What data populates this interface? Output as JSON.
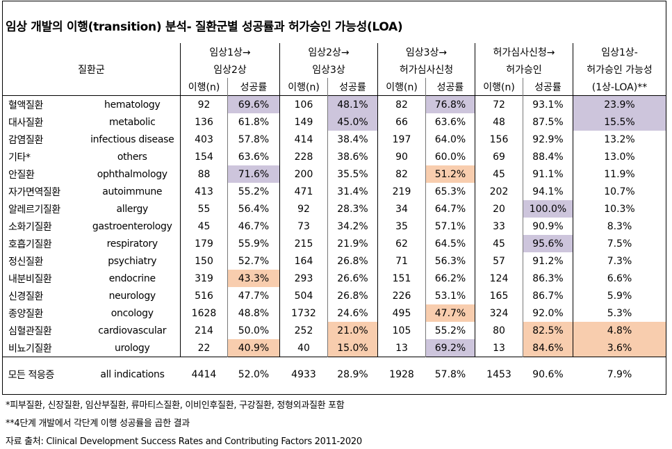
{
  "title": "임상 개발의 이행(transition) 분석- 질환군별 성공률과 허가승인 가능성(LOA)",
  "colors": {
    "highlight_high": "#cdc5dc",
    "highlight_low": "#f8cdae"
  },
  "header": {
    "group_label": "질환군",
    "phases": [
      {
        "line1": "임상1상→",
        "line2": "임상2상"
      },
      {
        "line1": "임상2상→",
        "line2": "임상3상"
      },
      {
        "line1": "임상3상→",
        "line2": "허가심사신청"
      },
      {
        "line1": "허가심사신청→",
        "line2": "허가승인"
      }
    ],
    "n_label": "이행(n)",
    "rate_label": "성공률",
    "loa_line1": "임상1상-",
    "loa_line2": "허가승인 가능성",
    "loa_line3": "(1상-LOA)**"
  },
  "rows": [
    {
      "ko": "혈액질환",
      "en": "hematology",
      "p1n": "92",
      "p1r": "69.6%",
      "p2n": "106",
      "p2r": "48.1%",
      "p3n": "82",
      "p3r": "76.8%",
      "p4n": "72",
      "p4r": "93.1%",
      "loa": "23.9%",
      "hl": {
        "p1r": "p",
        "p2r": "p",
        "p3r": "p",
        "loa": "p"
      }
    },
    {
      "ko": "대사질환",
      "en": "metabolic",
      "p1n": "136",
      "p1r": "61.8%",
      "p2n": "149",
      "p2r": "45.0%",
      "p3n": "66",
      "p3r": "63.6%",
      "p4n": "48",
      "p4r": "87.5%",
      "loa": "15.5%",
      "hl": {
        "p2r": "p",
        "loa": "p"
      }
    },
    {
      "ko": "감염질환",
      "en": "infectious disease",
      "p1n": "403",
      "p1r": "57.8%",
      "p2n": "414",
      "p2r": "38.4%",
      "p3n": "197",
      "p3r": "64.0%",
      "p4n": "156",
      "p4r": "92.9%",
      "loa": "13.2%",
      "hl": {}
    },
    {
      "ko": "기타*",
      "en": "others",
      "p1n": "154",
      "p1r": "63.6%",
      "p2n": "228",
      "p2r": "38.6%",
      "p3n": "90",
      "p3r": "60.0%",
      "p4n": "69",
      "p4r": "88.4%",
      "loa": "13.0%",
      "hl": {}
    },
    {
      "ko": "안질환",
      "en": "ophthalmology",
      "p1n": "88",
      "p1r": "71.6%",
      "p2n": "200",
      "p2r": "35.5%",
      "p3n": "82",
      "p3r": "51.2%",
      "p4n": "45",
      "p4r": "91.1%",
      "loa": "11.9%",
      "hl": {
        "p1r": "p",
        "p3r": "o"
      }
    },
    {
      "ko": "자가면역질환",
      "en": "autoimmune",
      "p1n": "413",
      "p1r": "55.2%",
      "p2n": "471",
      "p2r": "31.4%",
      "p3n": "219",
      "p3r": "65.3%",
      "p4n": "202",
      "p4r": "94.1%",
      "loa": "10.7%",
      "hl": {}
    },
    {
      "ko": "알레르기질환",
      "en": "allergy",
      "p1n": "55",
      "p1r": "56.4%",
      "p2n": "92",
      "p2r": "28.3%",
      "p3n": "34",
      "p3r": "64.7%",
      "p4n": "20",
      "p4r": "100.0%",
      "loa": "10.3%",
      "hl": {
        "p4r": "p"
      }
    },
    {
      "ko": "소화기질환",
      "en": "gastroenterology",
      "p1n": "45",
      "p1r": "46.7%",
      "p2n": "73",
      "p2r": "34.2%",
      "p3n": "35",
      "p3r": "57.1%",
      "p4n": "33",
      "p4r": "90.9%",
      "loa": "8.3%",
      "hl": {}
    },
    {
      "ko": "호흡기질환",
      "en": "respiratory",
      "p1n": "179",
      "p1r": "55.9%",
      "p2n": "215",
      "p2r": "21.9%",
      "p3n": "62",
      "p3r": "64.5%",
      "p4n": "45",
      "p4r": "95.6%",
      "loa": "7.5%",
      "hl": {
        "p4r": "p"
      }
    },
    {
      "ko": "정신질환",
      "en": "psychiatry",
      "p1n": "150",
      "p1r": "52.7%",
      "p2n": "164",
      "p2r": "26.8%",
      "p3n": "71",
      "p3r": "56.3%",
      "p4n": "57",
      "p4r": "91.2%",
      "loa": "7.3%",
      "hl": {}
    },
    {
      "ko": "내분비질환",
      "en": "endocrine",
      "p1n": "319",
      "p1r": "43.3%",
      "p2n": "293",
      "p2r": "26.6%",
      "p3n": "151",
      "p3r": "66.2%",
      "p4n": "124",
      "p4r": "86.3%",
      "loa": "6.6%",
      "hl": {
        "p1r": "o"
      }
    },
    {
      "ko": "신경질환",
      "en": "neurology",
      "p1n": "516",
      "p1r": "47.7%",
      "p2n": "504",
      "p2r": "26.8%",
      "p3n": "226",
      "p3r": "53.1%",
      "p4n": "165",
      "p4r": "86.7%",
      "loa": "5.9%",
      "hl": {}
    },
    {
      "ko": "종양질환",
      "en": "oncology",
      "p1n": "1628",
      "p1r": "48.8%",
      "p2n": "1732",
      "p2r": "24.6%",
      "p3n": "495",
      "p3r": "47.7%",
      "p4n": "324",
      "p4r": "92.0%",
      "loa": "5.3%",
      "hl": {
        "p3r": "o"
      }
    },
    {
      "ko": "심혈관질환",
      "en": "cardiovascular",
      "p1n": "214",
      "p1r": "50.0%",
      "p2n": "252",
      "p2r": "21.0%",
      "p3n": "105",
      "p3r": "55.2%",
      "p4n": "80",
      "p4r": "82.5%",
      "loa": "4.8%",
      "hl": {
        "p2r": "o",
        "p4r": "o",
        "loa": "o"
      }
    },
    {
      "ko": "비뇨기질환",
      "en": "urology",
      "p1n": "22",
      "p1r": "40.9%",
      "p2n": "40",
      "p2r": "15.0%",
      "p3n": "13",
      "p3r": "69.2%",
      "p4n": "13",
      "p4r": "84.6%",
      "loa": "3.6%",
      "hl": {
        "p1r": "o",
        "p2r": "o",
        "p3r": "p",
        "p4r": "o",
        "loa": "o"
      }
    }
  ],
  "total": {
    "ko": "모든 적응증",
    "en": "all indications",
    "p1n": "4414",
    "p1r": "52.0%",
    "p2n": "4933",
    "p2r": "28.9%",
    "p3n": "1928",
    "p3r": "57.8%",
    "p4n": "1453",
    "p4r": "90.6%",
    "loa": "7.9%"
  },
  "notes": {
    "footnote1": "*피부질환, 신장질환, 임산부질환, 류마티스질환, 이비인후질환, 구강질환, 정형외과질환 포함",
    "footnote2": "**4단계 개발에서 각단계 이행 성공률을 곱한 결과",
    "source": "자료 출처: Clinical Development Success Rates and Contributing Factors 2011-2020"
  }
}
